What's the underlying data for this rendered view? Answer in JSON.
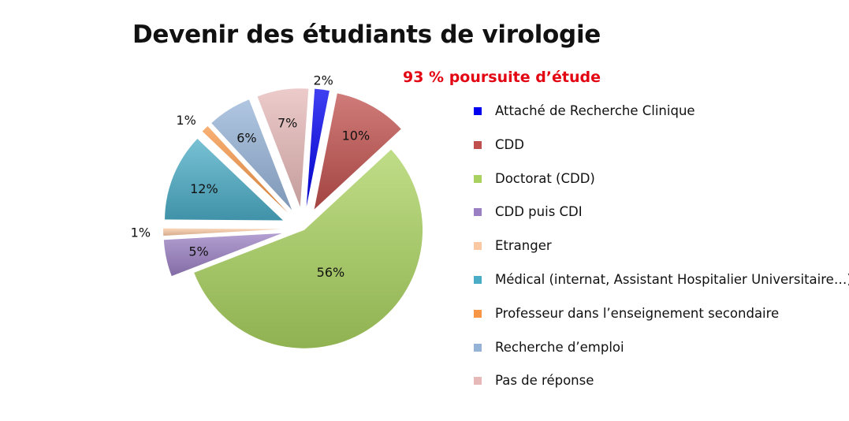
{
  "chart_data": {
    "type": "pie",
    "title": "Devenir des étudiants de virologie",
    "subtitle": "93 % poursuite d’étude",
    "value_format": "percent",
    "slices": [
      {
        "label": "Attaché de Recherche Clinique",
        "value": 2,
        "color": "#0000ee"
      },
      {
        "label": "CDD",
        "value": 10,
        "color": "#c0504d"
      },
      {
        "label": "Doctorat (CDD)",
        "value": 56,
        "color": "#a9d15f"
      },
      {
        "label": "CDD puis CDI",
        "value": 5,
        "color": "#9a7fc2"
      },
      {
        "label": "Etranger",
        "value": 1,
        "color": "#fac9a4"
      },
      {
        "label": "Médical (internat, Assistant Hospitalier Universitaire…)",
        "value": 12,
        "color": "#4bacc6"
      },
      {
        "label": "Professeur dans l’enseignement secondaire",
        "value": 1,
        "color": "#f79646"
      },
      {
        "label": "Recherche d’emploi",
        "value": 6,
        "color": "#95b3d7"
      },
      {
        "label": "Pas de réponse",
        "value": 7,
        "color": "#e6b9b8"
      }
    ],
    "legend_position": "right",
    "exploded": true
  }
}
